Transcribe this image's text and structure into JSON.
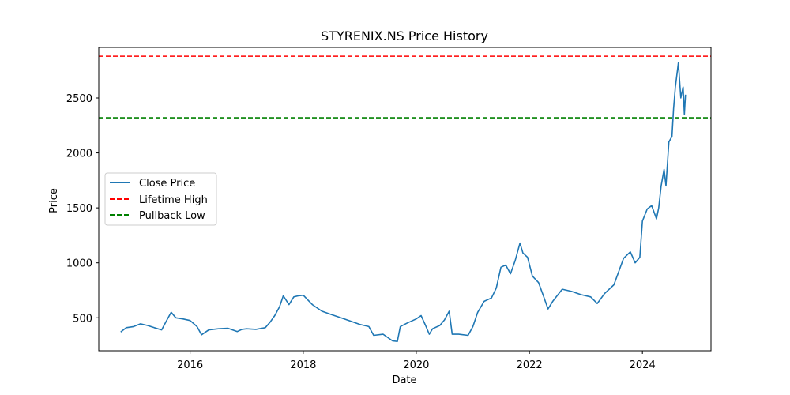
{
  "chart_data": {
    "type": "line",
    "title": "STYRENIX.NS Price History",
    "xlabel": "Date",
    "ylabel": "Price",
    "x_ticks": [
      "2016",
      "2018",
      "2020",
      "2022",
      "2024"
    ],
    "y_ticks": [
      500,
      1000,
      1500,
      2000,
      2500
    ],
    "xlim": [
      "2014-05-21",
      "2025-03-19"
    ],
    "ylim": [
      200,
      2960
    ],
    "grid": false,
    "legend_position": "center-left",
    "series": [
      {
        "name": "Close Price",
        "color": "#1f77b4",
        "style": "solid",
        "points": [
          [
            "2014-10-10",
            370
          ],
          [
            "2014-11-15",
            410
          ],
          [
            "2015-01-01",
            420
          ],
          [
            "2015-02-15",
            445
          ],
          [
            "2015-04-01",
            430
          ],
          [
            "2015-05-15",
            410
          ],
          [
            "2015-07-01",
            390
          ],
          [
            "2015-08-01",
            470
          ],
          [
            "2015-09-01",
            550
          ],
          [
            "2015-10-01",
            500
          ],
          [
            "2015-11-15",
            490
          ],
          [
            "2016-01-01",
            475
          ],
          [
            "2016-02-15",
            420
          ],
          [
            "2016-03-15",
            345
          ],
          [
            "2016-05-01",
            390
          ],
          [
            "2016-07-01",
            400
          ],
          [
            "2016-09-01",
            405
          ],
          [
            "2016-11-01",
            375
          ],
          [
            "2016-12-01",
            395
          ],
          [
            "2017-01-01",
            400
          ],
          [
            "2017-03-01",
            395
          ],
          [
            "2017-05-01",
            410
          ],
          [
            "2017-06-01",
            460
          ],
          [
            "2017-07-01",
            520
          ],
          [
            "2017-08-01",
            600
          ],
          [
            "2017-08-25",
            700
          ],
          [
            "2017-10-01",
            620
          ],
          [
            "2017-11-01",
            690
          ],
          [
            "2017-12-01",
            700
          ],
          [
            "2018-01-01",
            705
          ],
          [
            "2018-03-01",
            620
          ],
          [
            "2018-05-01",
            560
          ],
          [
            "2018-07-01",
            530
          ],
          [
            "2018-09-01",
            500
          ],
          [
            "2018-11-01",
            470
          ],
          [
            "2019-01-01",
            440
          ],
          [
            "2019-03-01",
            420
          ],
          [
            "2019-04-01",
            340
          ],
          [
            "2019-06-01",
            350
          ],
          [
            "2019-08-01",
            290
          ],
          [
            "2019-09-01",
            285
          ],
          [
            "2019-09-20",
            420
          ],
          [
            "2019-11-01",
            450
          ],
          [
            "2020-01-01",
            490
          ],
          [
            "2020-02-01",
            520
          ],
          [
            "2020-03-01",
            430
          ],
          [
            "2020-03-25",
            350
          ],
          [
            "2020-04-15",
            400
          ],
          [
            "2020-06-01",
            430
          ],
          [
            "2020-07-01",
            480
          ],
          [
            "2020-08-01",
            560
          ],
          [
            "2020-08-20",
            350
          ],
          [
            "2020-10-01",
            350
          ],
          [
            "2020-12-01",
            340
          ],
          [
            "2021-01-01",
            420
          ],
          [
            "2021-02-01",
            550
          ],
          [
            "2021-03-15",
            650
          ],
          [
            "2021-05-01",
            680
          ],
          [
            "2021-06-01",
            770
          ],
          [
            "2021-07-01",
            960
          ],
          [
            "2021-08-01",
            980
          ],
          [
            "2021-09-01",
            900
          ],
          [
            "2021-10-01",
            1020
          ],
          [
            "2021-11-01",
            1180
          ],
          [
            "2021-11-20",
            1090
          ],
          [
            "2021-12-20",
            1050
          ],
          [
            "2022-01-20",
            880
          ],
          [
            "2022-03-01",
            820
          ],
          [
            "2022-04-01",
            700
          ],
          [
            "2022-05-01",
            580
          ],
          [
            "2022-06-01",
            650
          ],
          [
            "2022-08-01",
            760
          ],
          [
            "2022-10-01",
            740
          ],
          [
            "2022-12-01",
            710
          ],
          [
            "2023-02-01",
            690
          ],
          [
            "2023-03-15",
            630
          ],
          [
            "2023-05-01",
            720
          ],
          [
            "2023-07-01",
            800
          ],
          [
            "2023-09-01",
            1040
          ],
          [
            "2023-10-15",
            1100
          ],
          [
            "2023-11-15",
            1000
          ],
          [
            "2023-12-15",
            1050
          ],
          [
            "2024-01-01",
            1380
          ],
          [
            "2024-02-01",
            1490
          ],
          [
            "2024-03-01",
            1520
          ],
          [
            "2024-04-01",
            1400
          ],
          [
            "2024-04-15",
            1500
          ],
          [
            "2024-05-01",
            1700
          ],
          [
            "2024-05-20",
            1850
          ],
          [
            "2024-06-01",
            1700
          ],
          [
            "2024-06-20",
            2100
          ],
          [
            "2024-07-10",
            2150
          ],
          [
            "2024-07-20",
            2400
          ],
          [
            "2024-08-01",
            2600
          ],
          [
            "2024-08-20",
            2820
          ],
          [
            "2024-09-05",
            2500
          ],
          [
            "2024-09-20",
            2600
          ],
          [
            "2024-09-28",
            2350
          ],
          [
            "2024-10-05",
            2530
          ]
        ]
      },
      {
        "name": "Lifetime High",
        "color": "#ff0000",
        "style": "dashed",
        "value": 2880
      },
      {
        "name": "Pullback Low",
        "color": "#008000",
        "style": "dashed",
        "value": 2320
      }
    ]
  }
}
